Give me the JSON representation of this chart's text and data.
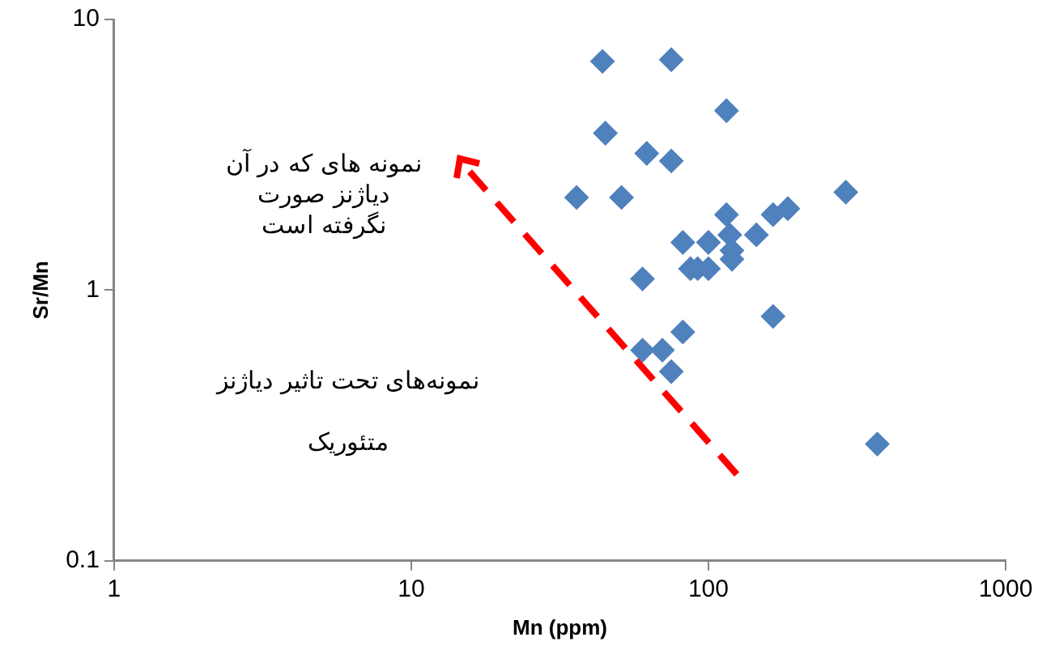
{
  "chart_data": {
    "type": "scatter",
    "xlabel": "Mn (ppm)",
    "ylabel": "Sr/Mn",
    "log": "xy",
    "grid": false,
    "legend": false,
    "marker": "diamond",
    "xlim": [
      1,
      1000
    ],
    "xticks": [
      1,
      10,
      100,
      1000
    ],
    "ylim": [
      0.1,
      10
    ],
    "yticks": [
      0.1,
      1,
      10
    ],
    "series": [
      {
        "color": "#4f81bd",
        "x": [
          44,
          75,
          115,
          45,
          62,
          75,
          36,
          51,
          115,
          165,
          185,
          290,
          82,
          100,
          118,
          145,
          120,
          120,
          87,
          92,
          100,
          60,
          165,
          82,
          60,
          70,
          75,
          370
        ],
        "values": [
          7.0,
          7.1,
          4.6,
          3.8,
          3.2,
          3.0,
          2.2,
          2.2,
          1.9,
          1.9,
          2.0,
          2.3,
          1.5,
          1.5,
          1.6,
          1.6,
          1.4,
          1.3,
          1.2,
          1.2,
          1.2,
          1.1,
          0.8,
          0.7,
          0.6,
          0.6,
          0.5,
          0.27
        ]
      }
    ],
    "annotations": [
      "نمونه های که در آن\nدیاژنز صورت\nنگرفته است",
      "نمونه‌های تحت تاثیر دیاژنز\n\nمتئوریک"
    ]
  }
}
